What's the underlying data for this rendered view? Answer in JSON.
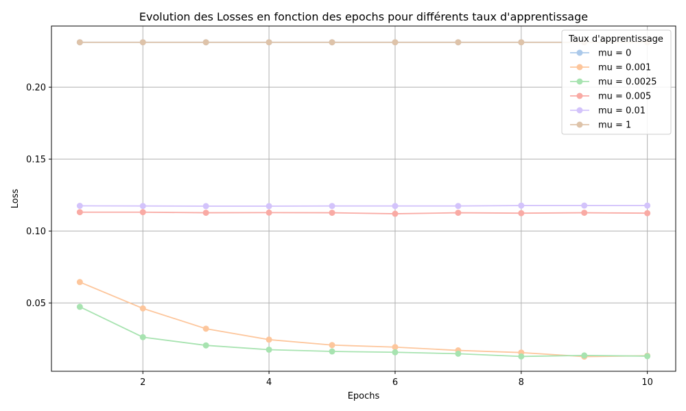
{
  "chart_data": {
    "type": "line",
    "title": "Evolution des Losses en fonction des epochs pour différents taux d'apprentissage",
    "xlabel": "Epochs",
    "ylabel": "Loss",
    "xlim": [
      0.55,
      10.45
    ],
    "ylim": [
      0.0025,
      0.2425
    ],
    "xticks": [
      2,
      4,
      6,
      8,
      10
    ],
    "yticks": [
      0.05,
      0.1,
      0.15,
      0.2
    ],
    "xtick_labels": [
      "2",
      "4",
      "6",
      "8",
      "10"
    ],
    "ytick_labels": [
      "0.05",
      "0.10",
      "0.15",
      "0.20"
    ],
    "grid": true,
    "legend": {
      "title": "Taux d'apprentissage",
      "placement": "top-right"
    },
    "x": [
      1,
      2,
      3,
      4,
      5,
      6,
      7,
      8,
      9,
      10
    ],
    "series": [
      {
        "name": "mu = 0",
        "color": "#abc9ea",
        "values": [
          0.2312,
          0.2312,
          0.2312,
          0.2312,
          0.2312,
          0.2312,
          0.2312,
          0.2312,
          0.2312,
          0.2312
        ]
      },
      {
        "name": "mu = 0.001",
        "color": "#fdc69c",
        "values": [
          0.0645,
          0.0462,
          0.0321,
          0.0245,
          0.0207,
          0.0193,
          0.017,
          0.0155,
          0.0127,
          0.0133
        ]
      },
      {
        "name": "mu = 0.0025",
        "color": "#a7e3b0",
        "values": [
          0.0473,
          0.0262,
          0.0205,
          0.0175,
          0.0163,
          0.0157,
          0.0147,
          0.0128,
          0.0135,
          0.013
        ]
      },
      {
        "name": "mu = 0.005",
        "color": "#f9aaa4",
        "values": [
          0.1131,
          0.1131,
          0.1127,
          0.1128,
          0.1127,
          0.112,
          0.1127,
          0.1124,
          0.1127,
          0.1124
        ]
      },
      {
        "name": "mu = 0.01",
        "color": "#d3c3fb",
        "values": [
          0.1175,
          0.1174,
          0.1173,
          0.1173,
          0.1174,
          0.1174,
          0.1174,
          0.1177,
          0.1177,
          0.1177
        ]
      },
      {
        "name": "mu = 1",
        "color": "#dec3a9",
        "values": [
          0.2312,
          0.2312,
          0.2312,
          0.2312,
          0.2312,
          0.2312,
          0.2312,
          0.2312,
          0.2312,
          0.2312
        ]
      }
    ]
  }
}
